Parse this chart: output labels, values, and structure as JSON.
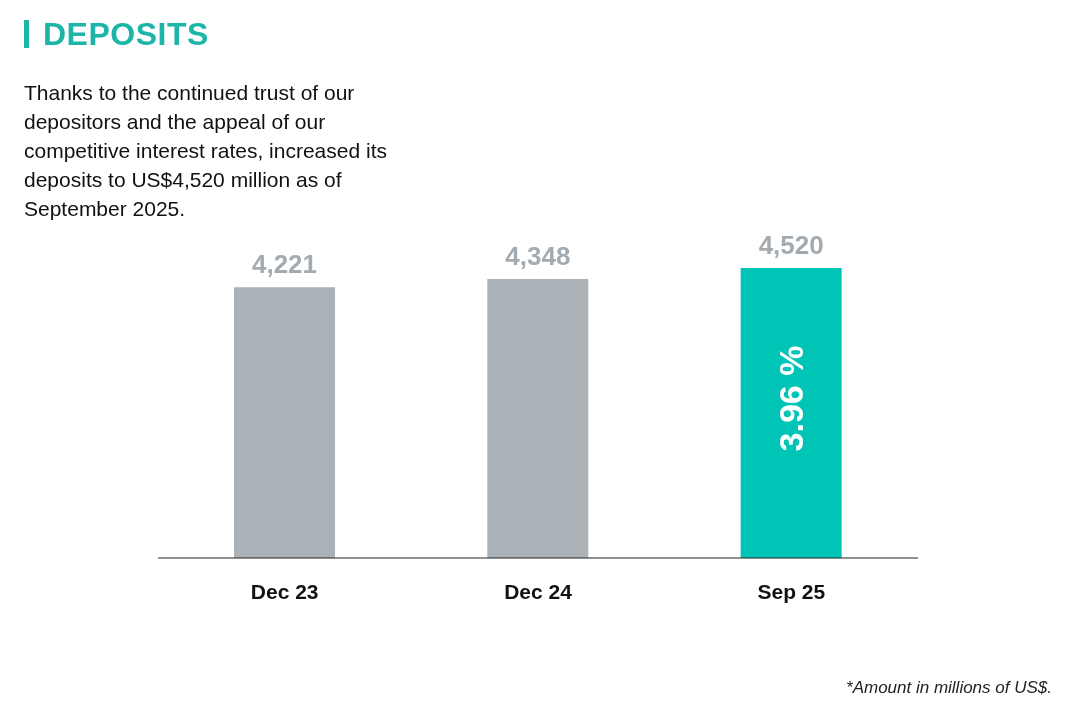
{
  "chart_data": {
    "type": "bar",
    "title": "DEPOSITS",
    "categories": [
      "Dec 23",
      "Dec 24",
      "Sep 25"
    ],
    "values": [
      4221,
      4348,
      4520
    ],
    "colors": [
      "#aab1b7",
      "#aab1b7",
      "#00c4b6"
    ],
    "value_labels": [
      "4,221",
      "4,348",
      "4,520"
    ],
    "annotations": [
      "Thanks to the continued trust of our depositors and the appeal of our competitive interest rates, increased its deposits to US$4,520 million as of September 2025.",
      "3.96 %",
      "*Amount in millions of US$."
    ]
  }
}
